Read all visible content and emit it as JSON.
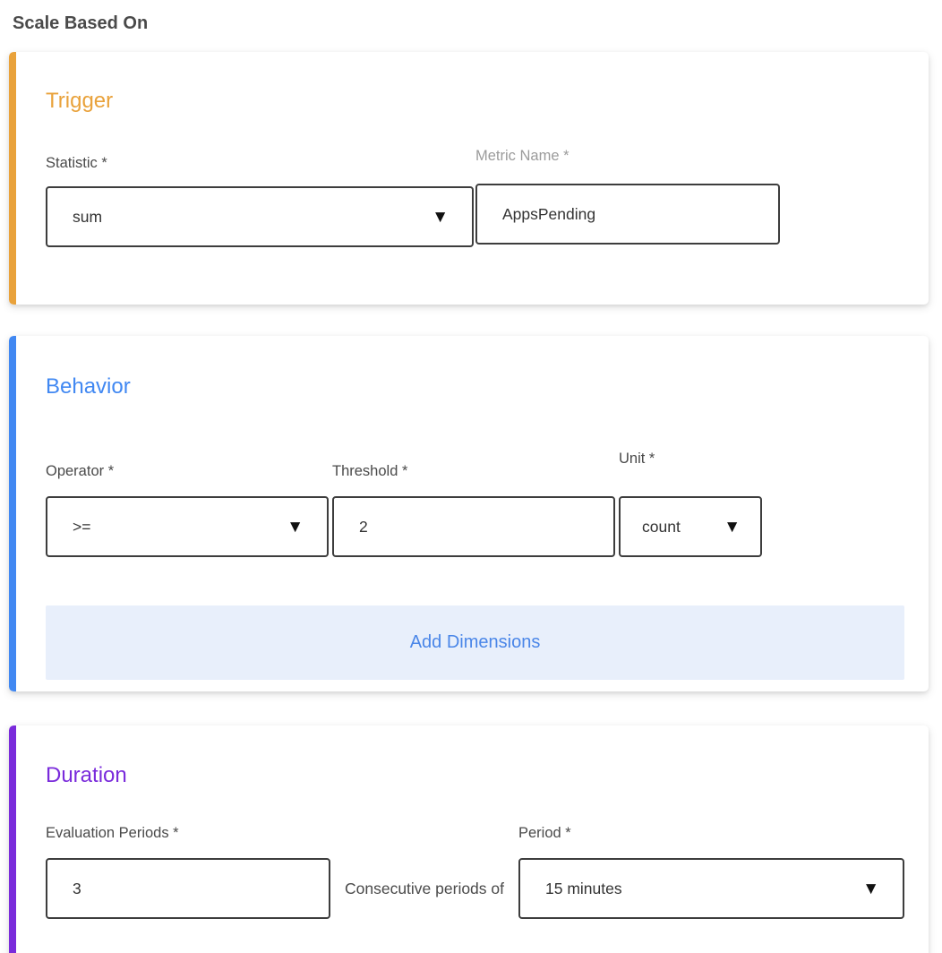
{
  "header": {
    "title": "Scale Based On"
  },
  "icons": {
    "caret_down": "▼"
  },
  "trigger_card": {
    "title": "Trigger",
    "accent_color": "#E9A23B",
    "statistic_label": "Statistic *",
    "statistic_value": "sum",
    "metric_name_label": "Metric Name *",
    "metric_name_value": "AppsPending"
  },
  "behavior_card": {
    "title": "Behavior",
    "accent_color": "#4188F2",
    "title_color": "#4A86E8",
    "operator_label": "Operator *",
    "operator_value": ">=",
    "threshold_label": "Threshold *",
    "threshold_value": "2",
    "unit_label": "Unit *",
    "unit_value": "count",
    "add_dimensions_label": "Add Dimensions",
    "add_dimensions_bg": "#E8EFFB",
    "add_dimensions_text_color": "#4A86E8"
  },
  "duration_card": {
    "title": "Duration",
    "accent_color": "#7A2BDB",
    "evaluation_periods_label": "Evaluation Periods *",
    "evaluation_periods_value": "3",
    "consecutive_text": "Consecutive periods of",
    "period_label": "Period *",
    "period_value": "15 minutes"
  }
}
